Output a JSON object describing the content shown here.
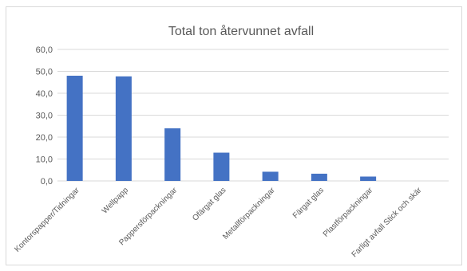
{
  "chart_data": {
    "type": "bar",
    "title": "Total ton återvunnet avfall",
    "categories": [
      "Kontorspapper/Tidningar",
      "Wellpapp",
      "Pappersförpackningar",
      "Ofärgat glas",
      "Metallförpackningar",
      "Färgat glas",
      "Plastförpackningar",
      "Farligt avfall Stick och skär"
    ],
    "values": [
      48.0,
      47.7,
      24.0,
      12.9,
      4.2,
      3.3,
      2.0,
      0.0
    ],
    "ylim": [
      0,
      60
    ],
    "yticks": [
      "0,0",
      "10,0",
      "20,0",
      "30,0",
      "40,0",
      "50,0",
      "60,0"
    ],
    "grid": true,
    "bar_color": "#4472c4",
    "grid_color": "#d9d9d9"
  }
}
